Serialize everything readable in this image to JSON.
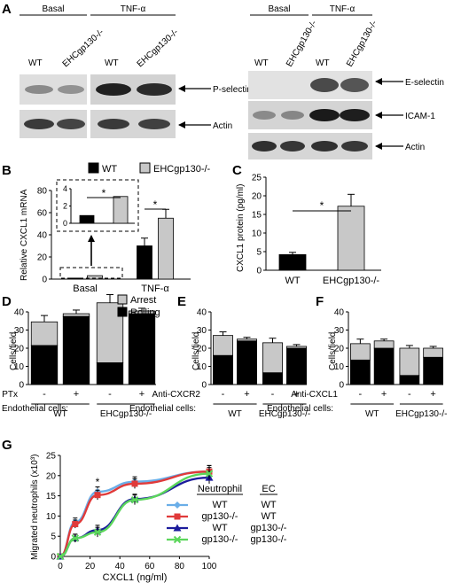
{
  "panels": {
    "A": "A",
    "B": "B",
    "C": "C",
    "D": "D",
    "E": "E",
    "F": "F",
    "G": "G"
  },
  "panel_a": {
    "left": {
      "cond_basal": "Basal",
      "cond_tnf": "TNF-α",
      "lanes": [
        "WT",
        "EHCgp130-/-",
        "WT",
        "EHCgp130-/-"
      ],
      "blots": [
        "P-selectin",
        "Actin"
      ]
    },
    "right": {
      "cond_basal": "Basal",
      "cond_tnf": "TNF-α",
      "lanes": [
        "WT",
        "EHCgp130-/-",
        "WT",
        "EHCgp130-/-"
      ],
      "blots": [
        "E-selectin",
        "ICAM-1",
        "Actin"
      ]
    }
  },
  "chart_data": [
    {
      "panel": "B",
      "type": "bar",
      "ylabel": "Relative CXCL1 mRNA",
      "categories": [
        "Basal",
        "TNF-α"
      ],
      "ylim": [
        0,
        80
      ],
      "yticks": [
        "0",
        "20",
        "40",
        "60",
        "80"
      ],
      "series": [
        {
          "name": "WT",
          "color": "#000000",
          "values": [
            0.9,
            30
          ],
          "errors": [
            0.2,
            7
          ]
        },
        {
          "name": "EHCgp130-/-",
          "color": "#c8c8c8",
          "values": [
            3.1,
            55
          ],
          "errors": [
            0.2,
            8
          ]
        }
      ],
      "inset": {
        "ylim": [
          0,
          4
        ],
        "yticks": [
          "0",
          "1",
          "2",
          "3",
          "4"
        ],
        "values": [
          0.9,
          3.1
        ]
      },
      "significance": [
        "*",
        "*"
      ]
    },
    {
      "panel": "C",
      "type": "bar",
      "ylabel": "CXCL1 protein (pg/ml)",
      "categories": [
        "WT",
        "EHCgp130-/-"
      ],
      "ylim": [
        0,
        25
      ],
      "yticks": [
        "0",
        "5",
        "10",
        "15",
        "20",
        "25"
      ],
      "values": [
        4.2,
        17.2
      ],
      "errors": [
        0.6,
        3.2
      ],
      "colors": [
        "#000000",
        "#c8c8c8"
      ],
      "significance": "*"
    },
    {
      "panel": "D",
      "type": "bar",
      "stacked": true,
      "ylabel": "Cells/field",
      "ylim": [
        0,
        40
      ],
      "yticks": [
        "0",
        "10",
        "20",
        "30",
        "40"
      ],
      "treatment_label": "PTx",
      "treatment_marks": [
        "-",
        "+",
        "-",
        "+"
      ],
      "group_title": "Endothelial cells:",
      "groups": [
        "WT",
        "EHCgp130-/-"
      ],
      "series": [
        {
          "name": "Rolling",
          "color": "#000000",
          "values": [
            21.5,
            37.5,
            12,
            39
          ]
        },
        {
          "name": "Arrest",
          "color": "#c8c8c8",
          "values": [
            13,
            1.5,
            33,
            1.5
          ]
        }
      ],
      "errors": [
        3.5,
        2,
        4.5,
        1.5
      ]
    },
    {
      "panel": "E",
      "type": "bar",
      "stacked": true,
      "ylabel": "Cells/field",
      "ylim": [
        0,
        40
      ],
      "yticks": [
        "0",
        "10",
        "20",
        "30",
        "40"
      ],
      "treatment_label": "Anti-CXCR2",
      "treatment_marks": [
        "-",
        "+",
        "-",
        "+"
      ],
      "group_title": "Endothelial cells:",
      "groups": [
        "WT",
        "EHCgp130-/-"
      ],
      "series": [
        {
          "name": "Rolling",
          "color": "#000000",
          "values": [
            16,
            24,
            6.5,
            20
          ]
        },
        {
          "name": "Arrest",
          "color": "#c8c8c8",
          "values": [
            11,
            1,
            16.5,
            1
          ]
        }
      ],
      "errors": [
        2,
        1,
        2.5,
        1
      ]
    },
    {
      "panel": "F",
      "type": "bar",
      "stacked": true,
      "ylabel": "Cells/field",
      "ylim": [
        0,
        40
      ],
      "yticks": [
        "0",
        "10",
        "20",
        "30",
        "40"
      ],
      "treatment_label": "Anti-CXCL1",
      "treatment_marks": [
        "-",
        "+",
        "-",
        "+"
      ],
      "group_title": "Endothelial cells:",
      "groups": [
        "WT",
        "EHCgp130-/-"
      ],
      "series": [
        {
          "name": "Rolling",
          "color": "#000000",
          "values": [
            13.5,
            20,
            5,
            15
          ]
        },
        {
          "name": "Arrest",
          "color": "#c8c8c8",
          "values": [
            9,
            4,
            15,
            5
          ]
        }
      ],
      "errors": [
        2.5,
        1,
        1.5,
        1
      ]
    },
    {
      "panel": "G",
      "type": "line",
      "xlabel": "CXCL1 (ng/ml)",
      "ylabel": "Migrated neutrophils (x10³)",
      "xlim": [
        0,
        100
      ],
      "ylim": [
        0,
        25
      ],
      "xticks": [
        "0",
        "20",
        "40",
        "60",
        "80",
        "100"
      ],
      "yticks": [
        "0",
        "5",
        "10",
        "15",
        "20",
        "25"
      ],
      "x": [
        0,
        10,
        25,
        50,
        100
      ],
      "legend_header": {
        "neutrophil": "Neutrophil",
        "ec": "EC"
      },
      "series": [
        {
          "neutrophil": "WT",
          "ec": "WT",
          "color": "#6aaee8",
          "marker": "diamond",
          "values": [
            0,
            8.5,
            16,
            18.5,
            21
          ]
        },
        {
          "neutrophil": "gp130-/-",
          "ec": "WT",
          "color": "#e03a3a",
          "marker": "square",
          "values": [
            0,
            8,
            15.2,
            18,
            21
          ]
        },
        {
          "neutrophil": "WT",
          "ec": "gp130-/-",
          "color": "#1c1c9c",
          "marker": "triangle",
          "values": [
            0,
            4.5,
            6.5,
            14.2,
            19.5
          ]
        },
        {
          "neutrophil": "gp130-/-",
          "ec": "gp130-/-",
          "color": "#5bd65b",
          "marker": "x",
          "values": [
            0,
            4.5,
            6,
            14,
            20.5
          ]
        }
      ],
      "errors": [
        0,
        1,
        1.2,
        1.2,
        1.5
      ],
      "significance": {
        "x": 25,
        "label": "*"
      }
    }
  ]
}
